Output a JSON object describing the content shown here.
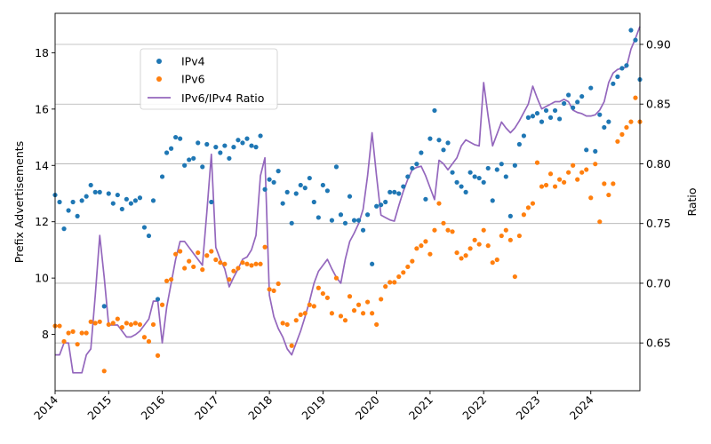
{
  "chart_data": {
    "type": "scatter",
    "title": "",
    "xlabel": "",
    "ylabel": "Prefix Advertisements",
    "y2label": "Ratio",
    "x_ticks": [
      "2014",
      "2015",
      "2016",
      "2017",
      "2018",
      "2019",
      "2020",
      "2021",
      "2022",
      "2023",
      "2024"
    ],
    "xlim": [
      "2014-01-01",
      "2024-12-01"
    ],
    "ylim": [
      6.0,
      19.4
    ],
    "y_ticks": [
      8,
      10,
      12,
      14,
      16,
      18
    ],
    "y2lim": [
      0.61,
      0.926
    ],
    "y2_ticks": [
      "0.65",
      "0.70",
      "0.75",
      "0.80",
      "0.85",
      "0.90"
    ],
    "grid": "horizontal-right-axis",
    "legend": {
      "placement": "upper-left",
      "entries": [
        "IPv4",
        "IPv6",
        "IPv6/IPv4 Ratio"
      ]
    },
    "x": [
      "2014-01",
      "2014-02",
      "2014-03",
      "2014-04",
      "2014-05",
      "2014-06",
      "2014-07",
      "2014-08",
      "2014-09",
      "2014-10",
      "2014-11",
      "2014-12",
      "2015-01",
      "2015-02",
      "2015-03",
      "2015-04",
      "2015-05",
      "2015-06",
      "2015-07",
      "2015-08",
      "2015-09",
      "2015-10",
      "2015-11",
      "2015-12",
      "2016-01",
      "2016-02",
      "2016-03",
      "2016-04",
      "2016-05",
      "2016-06",
      "2016-07",
      "2016-08",
      "2016-09",
      "2016-10",
      "2016-11",
      "2016-12",
      "2017-01",
      "2017-02",
      "2017-03",
      "2017-04",
      "2017-05",
      "2017-06",
      "2017-07",
      "2017-08",
      "2017-09",
      "2017-10",
      "2017-11",
      "2017-12",
      "2018-01",
      "2018-02",
      "2018-03",
      "2018-04",
      "2018-05",
      "2018-06",
      "2018-07",
      "2018-08",
      "2018-09",
      "2018-10",
      "2018-11",
      "2018-12",
      "2019-01",
      "2019-02",
      "2019-03",
      "2019-04",
      "2019-05",
      "2019-06",
      "2019-07",
      "2019-08",
      "2019-09",
      "2019-10",
      "2019-11",
      "2019-12",
      "2020-01",
      "2020-02",
      "2020-03",
      "2020-04",
      "2020-05",
      "2020-06",
      "2020-07",
      "2020-08",
      "2020-09",
      "2020-10",
      "2020-11",
      "2020-12",
      "2021-01",
      "2021-02",
      "2021-03",
      "2021-04",
      "2021-05",
      "2021-06",
      "2021-07",
      "2021-08",
      "2021-09",
      "2021-10",
      "2021-11",
      "2021-12",
      "2022-01",
      "2022-02",
      "2022-03",
      "2022-04",
      "2022-05",
      "2022-06",
      "2022-07",
      "2022-08",
      "2022-09",
      "2022-10",
      "2022-11",
      "2022-12",
      "2023-01",
      "2023-02",
      "2023-03",
      "2023-04",
      "2023-05",
      "2023-06",
      "2023-07",
      "2023-08",
      "2023-09",
      "2023-10",
      "2023-11",
      "2023-12",
      "2024-01",
      "2024-02",
      "2024-03",
      "2024-04",
      "2024-05",
      "2024-06",
      "2024-07",
      "2024-08",
      "2024-09",
      "2024-10",
      "2024-11",
      "2024-12"
    ],
    "series": [
      {
        "name": "IPv4",
        "color": "#1f77b4",
        "axis": "left",
        "values": [
          12.95,
          12.7,
          11.75,
          12.4,
          12.7,
          12.2,
          12.75,
          12.9,
          13.3,
          13.05,
          13.05,
          9.0,
          13.0,
          12.65,
          12.95,
          12.45,
          12.8,
          12.65,
          12.75,
          12.85,
          11.8,
          11.5,
          12.75,
          9.25,
          13.6,
          14.45,
          14.6,
          15.0,
          14.95,
          14.0,
          14.2,
          14.25,
          14.8,
          13.95,
          14.75,
          12.7,
          14.65,
          14.45,
          14.7,
          14.25,
          14.65,
          14.9,
          14.8,
          14.95,
          14.7,
          14.65,
          15.05,
          13.15,
          13.5,
          13.4,
          13.8,
          12.65,
          13.05,
          11.95,
          13.0,
          13.3,
          13.2,
          13.55,
          12.7,
          12.15,
          13.3,
          13.1,
          12.05,
          13.95,
          12.25,
          11.95,
          12.9,
          12.05,
          12.05,
          11.7,
          12.25,
          10.5,
          12.55,
          12.6,
          12.7,
          13.05,
          13.05,
          13.0,
          13.25,
          13.6,
          13.9,
          14.05,
          14.45,
          12.8,
          14.95,
          15.95,
          14.9,
          14.55,
          14.8,
          13.75,
          13.4,
          13.25,
          13.05,
          13.75,
          13.6,
          13.55,
          13.4,
          13.9,
          12.75,
          13.85,
          14.05,
          13.6,
          12.2,
          14.0,
          14.75,
          15.05,
          15.7,
          15.75,
          15.85,
          15.55,
          15.95,
          15.7,
          15.95,
          15.65,
          16.2,
          16.5,
          16.05,
          16.25,
          16.45,
          14.55,
          16.75,
          14.5,
          15.8,
          15.35,
          15.55,
          16.9,
          17.15,
          17.45,
          17.55,
          18.8,
          18.45,
          17.05
        ]
      },
      {
        "name": "IPv6",
        "color": "#ff7f0e",
        "axis": "left",
        "values": [
          8.3,
          8.3,
          7.75,
          8.05,
          8.1,
          7.65,
          8.05,
          8.05,
          8.45,
          8.4,
          8.45,
          6.7,
          8.35,
          8.4,
          8.55,
          8.25,
          8.4,
          8.35,
          8.4,
          8.35,
          7.9,
          7.75,
          8.35,
          7.25,
          9.05,
          9.9,
          9.95,
          10.85,
          10.95,
          10.35,
          10.6,
          10.4,
          10.9,
          10.3,
          10.8,
          10.95,
          10.65,
          10.55,
          10.5,
          9.95,
          10.25,
          10.35,
          10.55,
          10.5,
          10.45,
          10.5,
          10.5,
          11.1,
          9.6,
          9.55,
          9.8,
          8.4,
          8.35,
          7.6,
          8.5,
          8.7,
          8.75,
          9.05,
          9.0,
          9.65,
          9.45,
          9.3,
          8.75,
          10.0,
          8.65,
          8.5,
          9.35,
          8.85,
          9.05,
          8.75,
          9.15,
          8.75,
          8.35,
          9.25,
          9.7,
          9.85,
          9.85,
          10.05,
          10.2,
          10.4,
          10.6,
          11.05,
          11.15,
          11.3,
          10.85,
          11.7,
          12.65,
          11.95,
          11.7,
          11.65,
          10.9,
          10.7,
          10.8,
          11.05,
          11.35,
          11.2,
          11.7,
          11.15,
          10.55,
          10.65,
          11.5,
          11.7,
          11.35,
          10.05,
          11.5,
          12.25,
          12.5,
          12.65,
          14.1,
          13.25,
          13.3,
          13.7,
          13.25,
          13.5,
          13.4,
          13.75,
          14.0,
          13.5,
          13.75,
          13.85,
          12.85,
          14.05,
          12.0,
          13.35,
          12.95,
          13.35,
          14.85,
          15.1,
          15.35,
          15.55,
          16.4,
          15.55
        ]
      },
      {
        "name": "IPv6/IPv4 Ratio",
        "color": "#9467bd",
        "axis": "right",
        "values": [
          0.64,
          0.64,
          0.65,
          0.65,
          0.625,
          0.625,
          0.625,
          0.64,
          0.645,
          0.69,
          0.74,
          0.705,
          0.665,
          0.665,
          0.665,
          0.66,
          0.655,
          0.655,
          0.657,
          0.66,
          0.665,
          0.67,
          0.685,
          0.685,
          0.65,
          0.68,
          0.7,
          0.72,
          0.735,
          0.735,
          0.73,
          0.725,
          0.72,
          0.715,
          0.76,
          0.808,
          0.73,
          0.72,
          0.712,
          0.697,
          0.705,
          0.712,
          0.72,
          0.722,
          0.728,
          0.74,
          0.79,
          0.805,
          0.69,
          0.672,
          0.662,
          0.655,
          0.645,
          0.64,
          0.65,
          0.66,
          0.672,
          0.685,
          0.7,
          0.71,
          0.715,
          0.72,
          0.712,
          0.705,
          0.7,
          0.72,
          0.735,
          0.742,
          0.75,
          0.762,
          0.79,
          0.826,
          0.79,
          0.757,
          0.755,
          0.753,
          0.752,
          0.765,
          0.777,
          0.787,
          0.795,
          0.797,
          0.798,
          0.79,
          0.78,
          0.77,
          0.803,
          0.8,
          0.795,
          0.8,
          0.805,
          0.815,
          0.82,
          0.818,
          0.816,
          0.815,
          0.868,
          0.84,
          0.815,
          0.825,
          0.835,
          0.83,
          0.826,
          0.83,
          0.836,
          0.843,
          0.85,
          0.865,
          0.855,
          0.846,
          0.848,
          0.85,
          0.852,
          0.852,
          0.854,
          0.852,
          0.845,
          0.843,
          0.842,
          0.84,
          0.84,
          0.841,
          0.845,
          0.852,
          0.868,
          0.876,
          0.879,
          0.88,
          0.881,
          0.896,
          0.905,
          0.915
        ]
      }
    ]
  }
}
